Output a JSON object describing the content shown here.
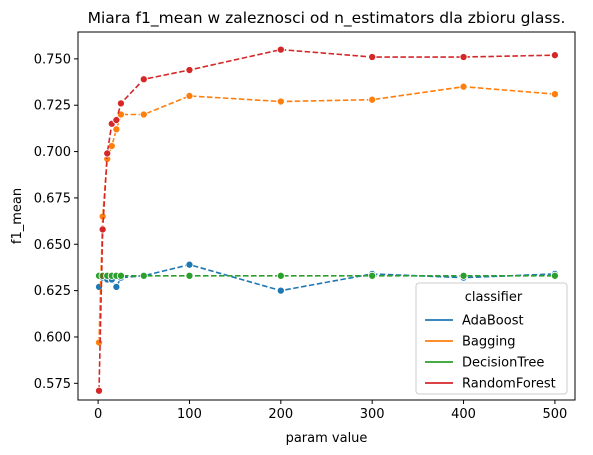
{
  "chart_data": {
    "type": "line",
    "title": "Miara f1_mean w zaleznosci od n_estimators dla zbioru glass.",
    "xlabel": "param value",
    "ylabel": "f1_mean",
    "xlim": [
      -22,
      522
    ],
    "ylim": [
      0.566,
      0.7645
    ],
    "xticks": [
      0,
      100,
      200,
      300,
      400,
      500
    ],
    "yticks": [
      0.575,
      0.6,
      0.625,
      0.65,
      0.675,
      0.7,
      0.725,
      0.75
    ],
    "ytick_labels": [
      "0.575",
      "0.600",
      "0.625",
      "0.650",
      "0.675",
      "0.700",
      "0.725",
      "0.750"
    ],
    "legend": {
      "title": "classifier",
      "placement": "lower-right"
    },
    "grid": false,
    "line_style": "dashed",
    "marker": "circle",
    "series": [
      {
        "name": "AdaBoost",
        "color": "#1f77b4",
        "x": [
          1,
          5,
          10,
          15,
          20,
          25,
          50,
          100,
          200,
          300,
          400,
          500
        ],
        "y": [
          0.627,
          0.632,
          0.631,
          0.631,
          0.627,
          0.632,
          0.633,
          0.639,
          0.625,
          0.634,
          0.632,
          0.634
        ]
      },
      {
        "name": "Bagging",
        "color": "#ff7f0e",
        "x": [
          1,
          5,
          10,
          15,
          20,
          25,
          50,
          100,
          200,
          300,
          400,
          500
        ],
        "y": [
          0.597,
          0.665,
          0.696,
          0.703,
          0.712,
          0.72,
          0.72,
          0.73,
          0.727,
          0.728,
          0.735,
          0.731
        ]
      },
      {
        "name": "DecisionTree",
        "color": "#2ca02c",
        "x": [
          1,
          5,
          10,
          15,
          20,
          25,
          50,
          100,
          200,
          300,
          400,
          500
        ],
        "y": [
          0.633,
          0.633,
          0.633,
          0.633,
          0.633,
          0.633,
          0.633,
          0.633,
          0.633,
          0.633,
          0.633,
          0.633
        ]
      },
      {
        "name": "RandomForest",
        "color": "#d62728",
        "x": [
          1,
          5,
          10,
          15,
          20,
          25,
          50,
          100,
          200,
          300,
          400,
          500
        ],
        "y": [
          0.571,
          0.658,
          0.699,
          0.715,
          0.717,
          0.726,
          0.739,
          0.744,
          0.755,
          0.751,
          0.751,
          0.752
        ]
      }
    ]
  }
}
